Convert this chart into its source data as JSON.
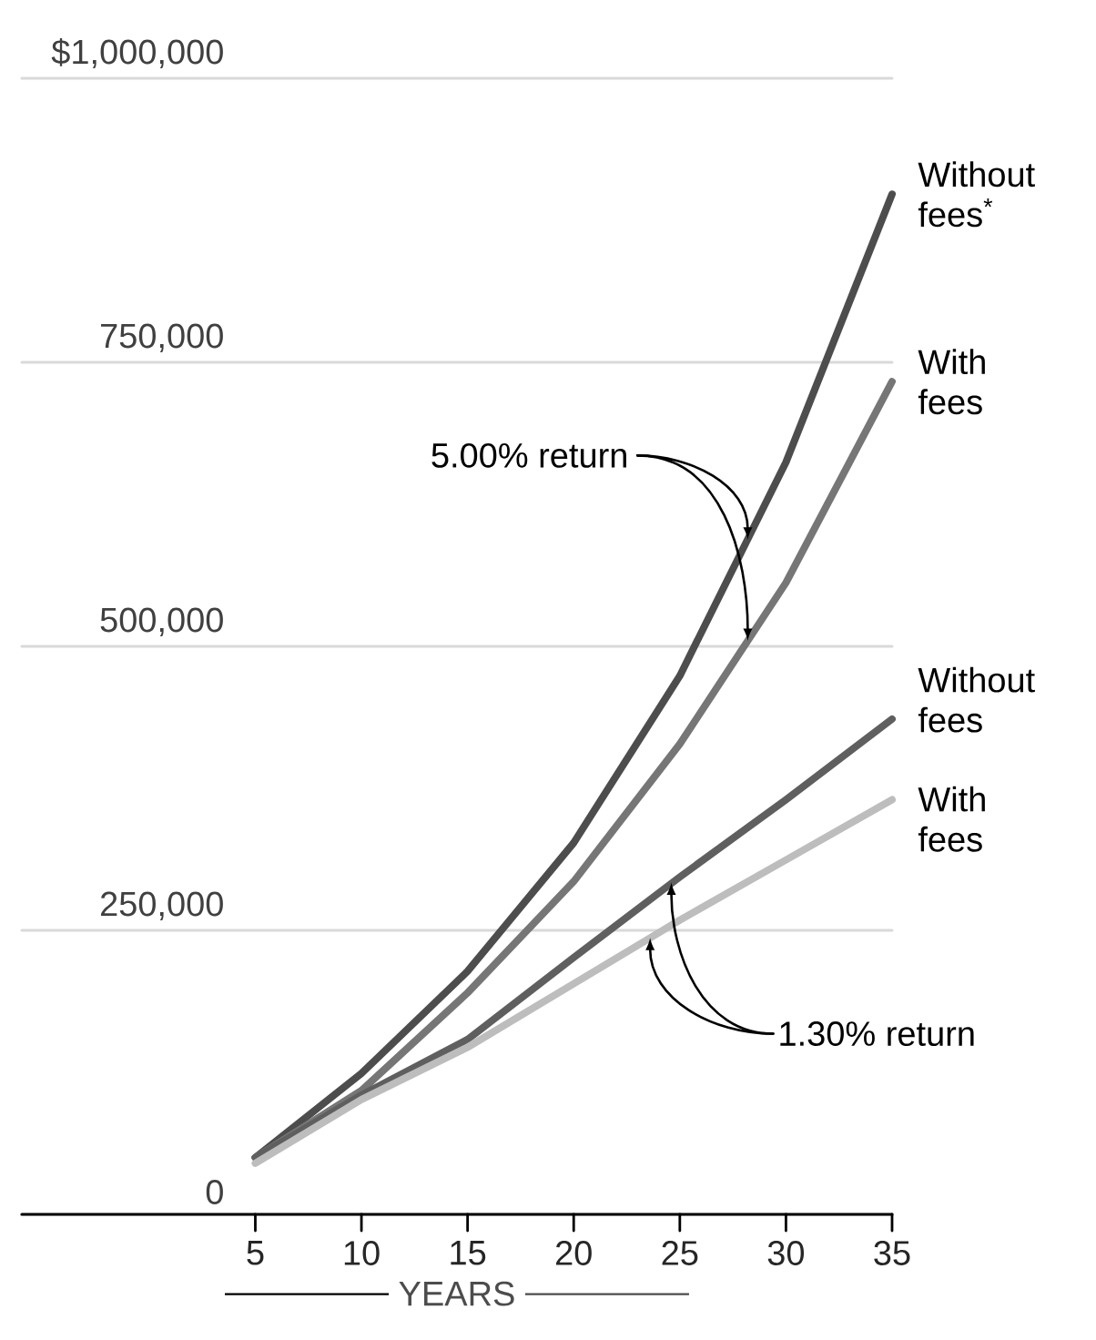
{
  "chart_data": {
    "type": "line",
    "xlabel": "YEARS",
    "x": [
      5,
      10,
      15,
      20,
      25,
      30,
      35
    ],
    "series": [
      {
        "name": "Without fees$^{*}$",
        "color": "#4d4d4d",
        "values": [
          50000,
          124000,
          214000,
          327000,
          474000,
          662000,
          898000
        ]
      },
      {
        "name": "With fees",
        "color": "#767676",
        "values": [
          50000,
          109000,
          195000,
          293000,
          414000,
          556000,
          733000
        ]
      },
      {
        "name": "Without fees",
        "color": "#5f5f5f",
        "values": [
          50000,
          105000,
          154000,
          226000,
          297000,
          365000,
          436000
        ]
      },
      {
        "name": "With fees",
        "color": "#bdbdbd",
        "values": [
          45000,
          101000,
          147000,
          203000,
          259000,
          312000,
          365000
        ]
      }
    ],
    "xlim": [
      -6,
      35
    ],
    "xticks": [
      5,
      10,
      15,
      20,
      25,
      30,
      35
    ],
    "ylim": [
      0,
      1000000
    ],
    "yticks": [
      {
        "value": 0,
        "label": "0"
      },
      {
        "value": 250000,
        "label": "250,000"
      },
      {
        "value": 500000,
        "label": "500,000"
      },
      {
        "value": 750000,
        "label": "750,000"
      },
      {
        "value": 1000000,
        "label": "$1,000,000"
      }
    ],
    "grid": "y",
    "marker": "none",
    "line_style": "solid",
    "annotations": [
      {
        "text": "5.00% return",
        "x": 28.2,
        "y": 594000
      },
      {
        "text": "1.30% return",
        "x": 24.6,
        "y": 292000
      }
    ]
  }
}
